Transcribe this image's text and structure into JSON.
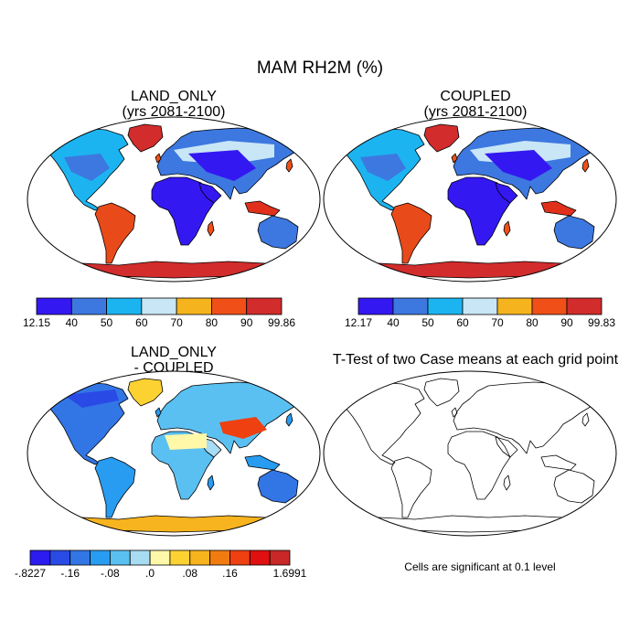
{
  "figure": {
    "title": "MAM RH2M (%)",
    "note": "Cells are significant at 0.1 level"
  },
  "panels": [
    {
      "id": "p1",
      "title_lines": [
        "LAND_ONLY",
        "(yrs 2081-2100)"
      ],
      "scheme": "rh"
    },
    {
      "id": "p2",
      "title_lines": [
        "COUPLED",
        "(yrs 2081-2100)"
      ],
      "scheme": "rh"
    },
    {
      "id": "p3",
      "title_lines": [
        "LAND_ONLY",
        "- COUPLED"
      ],
      "scheme": "diff"
    },
    {
      "id": "p4",
      "title_lines": [
        "T-Test of two Case means at each grid point"
      ],
      "scheme": "none"
    }
  ],
  "colorbars": [
    {
      "id": "cb1",
      "colors": [
        "#3418f2",
        "#3c78e0",
        "#1cb4f0",
        "#c8e6f5",
        "#f5b41e",
        "#f05018",
        "#d22c2c"
      ],
      "labels": [
        "12.15",
        "40",
        "50",
        "60",
        "70",
        "80",
        "90",
        "99.86"
      ]
    },
    {
      "id": "cb2",
      "colors": [
        "#3418f2",
        "#3c78e0",
        "#1cb4f0",
        "#c8e6f5",
        "#f5b41e",
        "#f05018",
        "#d22c2c"
      ],
      "labels": [
        "12.17",
        "40",
        "50",
        "60",
        "70",
        "80",
        "90",
        "99.83"
      ]
    },
    {
      "id": "cb3",
      "colors": [
        "#2c1cf0",
        "#2a4ae6",
        "#3276e6",
        "#289cf0",
        "#5ac0f2",
        "#a8dcf2",
        "#fff8a8",
        "#fcd232",
        "#f8b41e",
        "#f07c10",
        "#ee4010",
        "#e01010",
        "#c82828"
      ],
      "labels": [
        "-.8227",
        "-.16",
        "-.08",
        ".0",
        ".08",
        ".16",
        "1.6991"
      ],
      "label_edges": [
        0,
        2,
        4,
        6,
        8,
        10,
        13
      ]
    }
  ]
}
